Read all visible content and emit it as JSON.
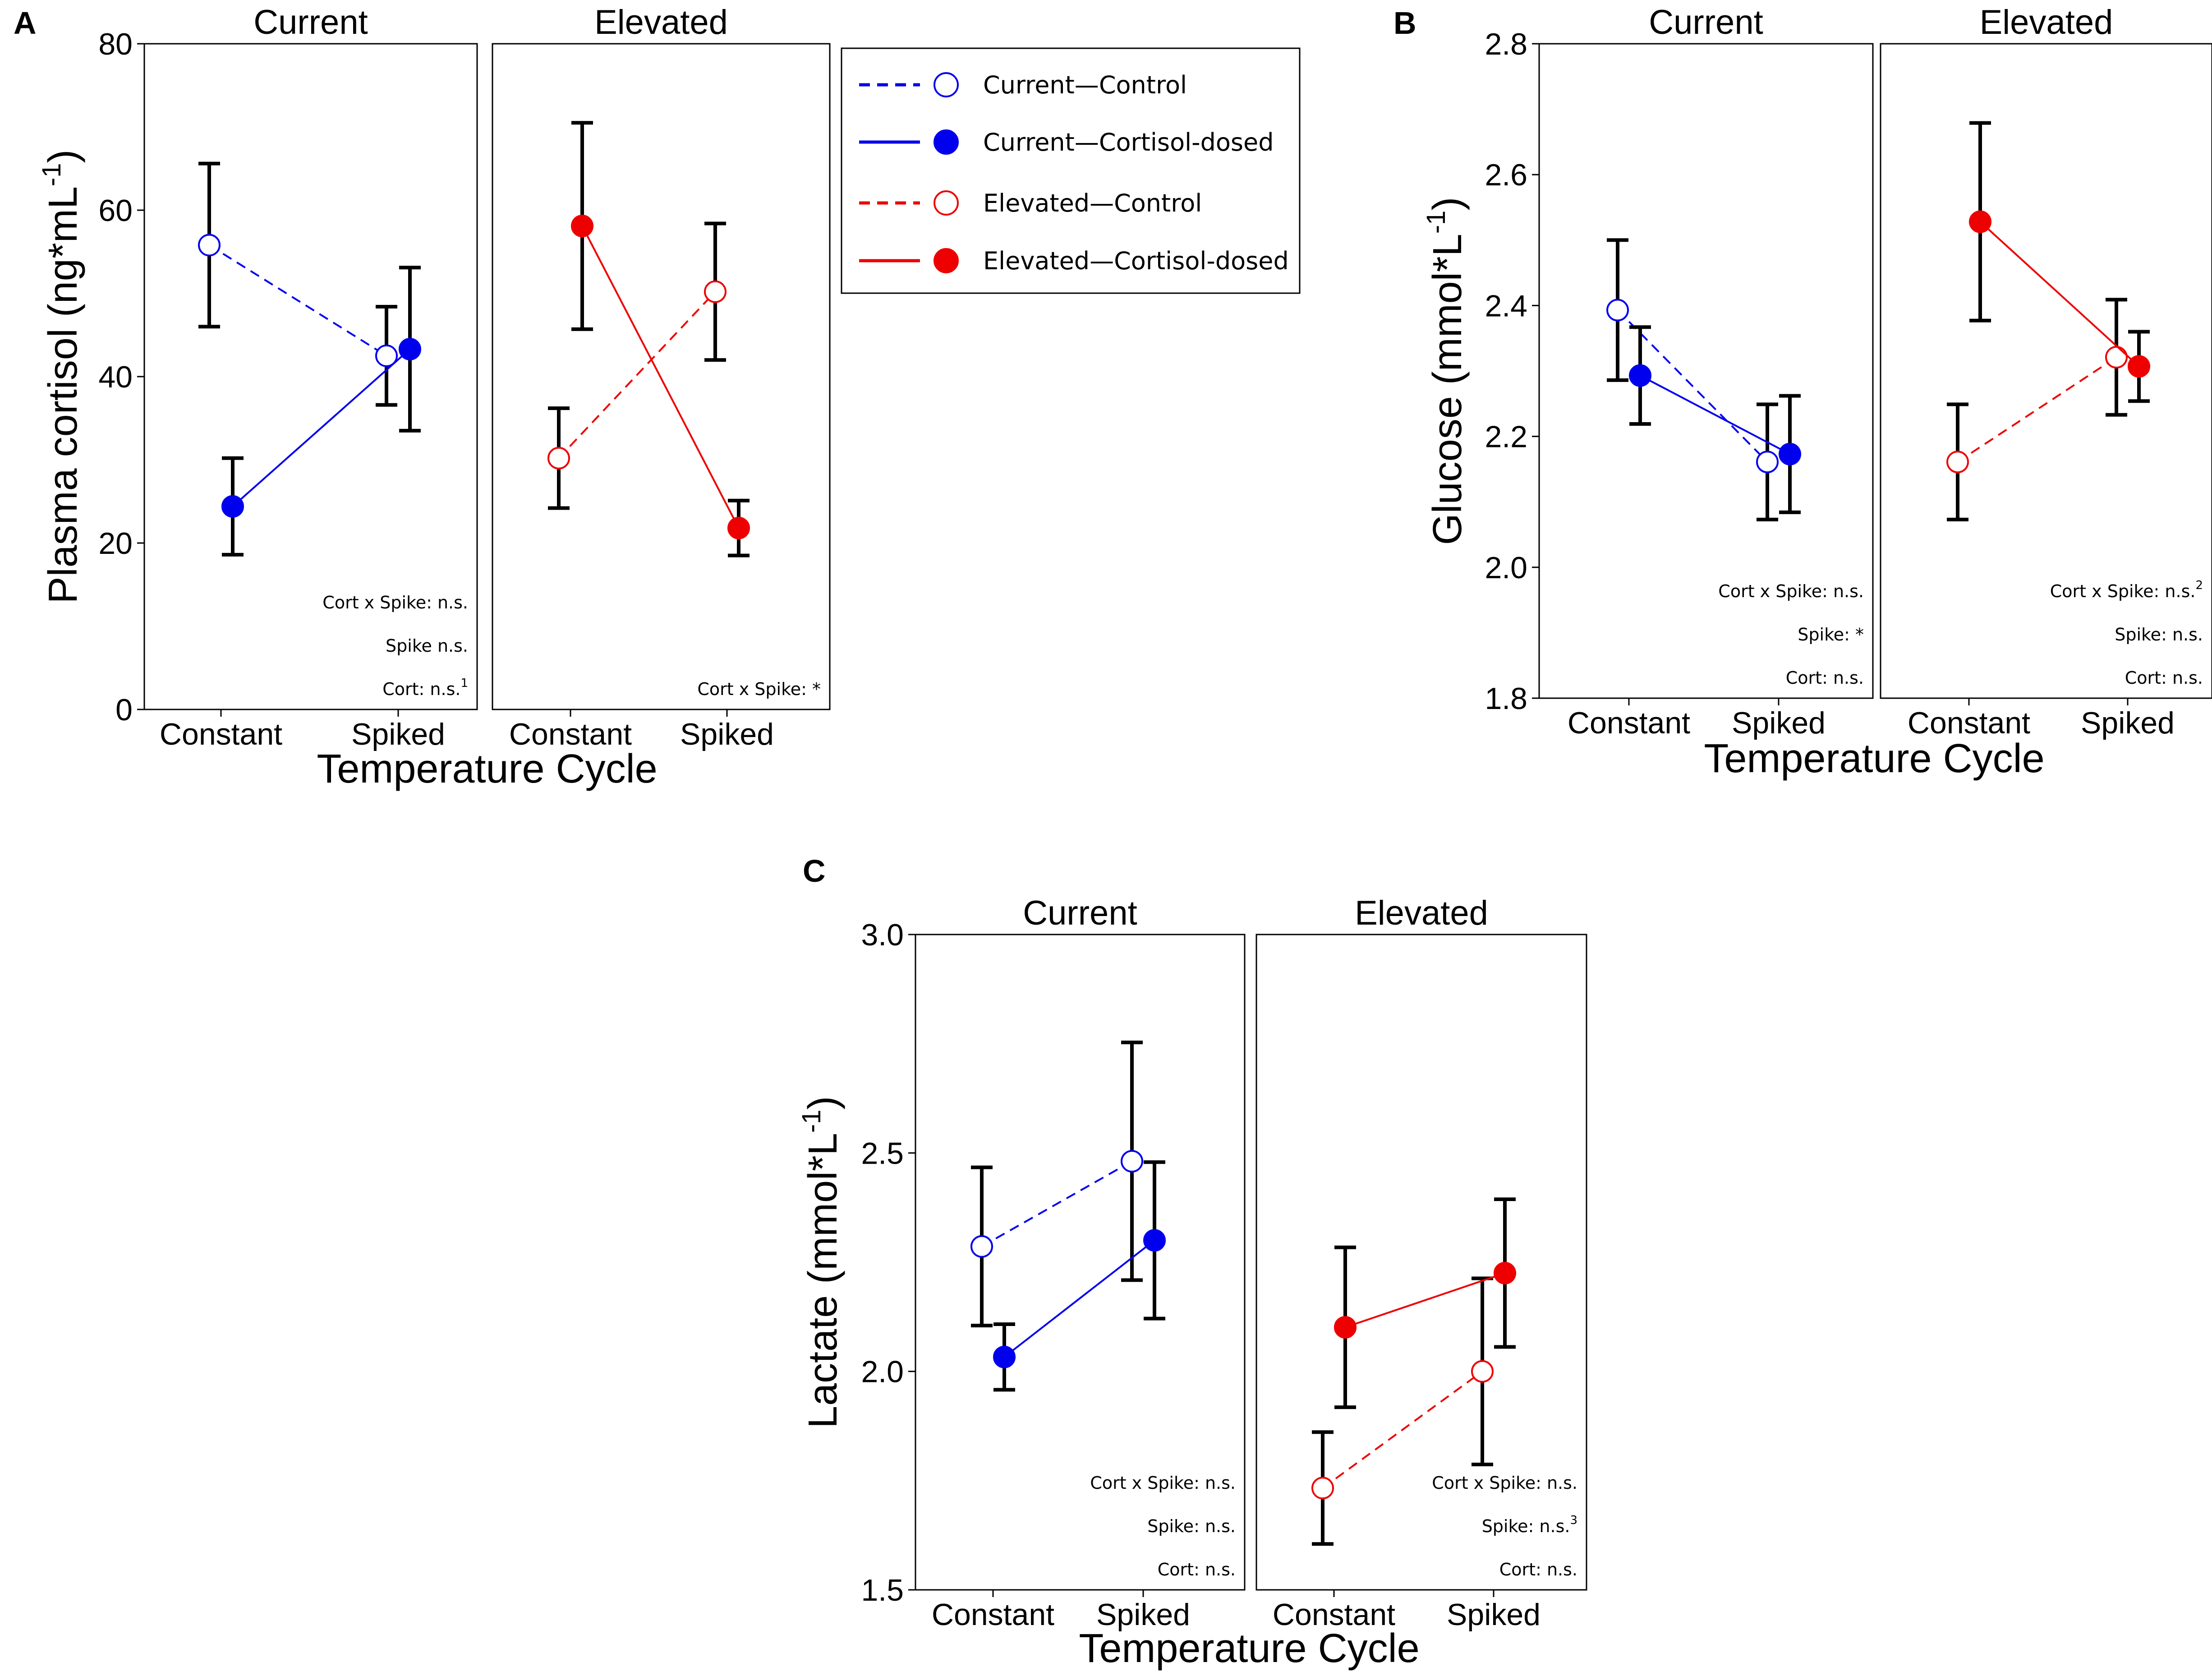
{
  "legend": {
    "entries": [
      {
        "label": "Current—Control",
        "color": "#0000ee",
        "dashed": true,
        "filled": false
      },
      {
        "label": "Current—Cortisol-dosed",
        "color": "#0000ee",
        "dashed": false,
        "filled": true
      },
      {
        "label": "Elevated—Control",
        "color": "#ee0000",
        "dashed": true,
        "filled": false
      },
      {
        "label": "Elevated—Cortisol-dosed",
        "color": "#ee0000",
        "dashed": false,
        "filled": true
      }
    ]
  },
  "chart_data": [
    {
      "panel": "A",
      "type": "line",
      "ylabel_main": "Plasma cortisol (ng*mL",
      "ylabel_sup": "-1",
      "ylabel_end": ")",
      "xlabel": "Temperature Cycle",
      "ylim": [
        0,
        80
      ],
      "yticks": [
        "0",
        "20",
        "40",
        "60",
        "80"
      ],
      "ytick_values": [
        0,
        20,
        40,
        60,
        80
      ],
      "categories": [
        "Constant",
        "Spiked"
      ],
      "facets": [
        {
          "title": "Current",
          "series": [
            {
              "name": "Current—Control",
              "color": "#0000ee",
              "dashed": true,
              "filled": false,
              "values": [
                55.8,
                42.5
              ],
              "err_low": [
                46.0,
                36.6
              ],
              "err_high": [
                65.6,
                48.4
              ]
            },
            {
              "name": "Current—Cortisol-dosed",
              "color": "#0000ee",
              "dashed": false,
              "filled": true,
              "values": [
                24.4,
                43.3
              ],
              "err_low": [
                18.6,
                33.5
              ],
              "err_high": [
                30.2,
                53.1
              ]
            }
          ],
          "annotations": [
            {
              "text": "Cort x Spike: n.s.",
              "sup": ""
            },
            {
              "text": "Spike n.s.",
              "sup": ""
            },
            {
              "text": "Cort: n.s.",
              "sup": "1"
            }
          ]
        },
        {
          "title": "Elevated",
          "series": [
            {
              "name": "Elevated—Control",
              "color": "#ee0000",
              "dashed": true,
              "filled": false,
              "values": [
                30.2,
                50.2
              ],
              "err_low": [
                24.2,
                42.0
              ],
              "err_high": [
                36.2,
                58.4
              ]
            },
            {
              "name": "Elevated—Cortisol-dosed",
              "color": "#ee0000",
              "dashed": false,
              "filled": true,
              "values": [
                58.1,
                21.8
              ],
              "err_low": [
                45.7,
                18.5
              ],
              "err_high": [
                70.5,
                25.1
              ]
            }
          ],
          "annotations": [
            {
              "text": "Cort x Spike: *",
              "sup": ""
            }
          ]
        }
      ]
    },
    {
      "panel": "B",
      "type": "line",
      "ylabel_main": "Glucose (mmol*L",
      "ylabel_sup": "-1",
      "ylabel_end": ")",
      "xlabel": "Temperature Cycle",
      "ylim": [
        1.8,
        2.8
      ],
      "yticks": [
        "1.8",
        "2.0",
        "2.2",
        "2.4",
        "2.6",
        "2.8"
      ],
      "ytick_values": [
        1.8,
        2.0,
        2.2,
        2.4,
        2.6,
        2.8
      ],
      "categories": [
        "Constant",
        "Spiked"
      ],
      "facets": [
        {
          "title": "Current",
          "series": [
            {
              "name": "Current—Control",
              "color": "#0000ee",
              "dashed": true,
              "filled": false,
              "values": [
                2.393,
                2.161
              ],
              "err_low": [
                2.286,
                2.073
              ],
              "err_high": [
                2.5,
                2.249
              ]
            },
            {
              "name": "Current—Cortisol-dosed",
              "color": "#0000ee",
              "dashed": false,
              "filled": true,
              "values": [
                2.293,
                2.173
              ],
              "err_low": [
                2.219,
                2.084
              ],
              "err_high": [
                2.367,
                2.262
              ]
            }
          ],
          "annotations": [
            {
              "text": "Cort x Spike: n.s.",
              "sup": ""
            },
            {
              "text": "Spike: *",
              "sup": ""
            },
            {
              "text": "Cort: n.s.",
              "sup": ""
            }
          ]
        },
        {
          "title": "Elevated",
          "series": [
            {
              "name": "Elevated—Control",
              "color": "#ee0000",
              "dashed": true,
              "filled": false,
              "values": [
                2.161,
                2.321
              ],
              "err_low": [
                2.073,
                2.233
              ],
              "err_high": [
                2.249,
                2.409
              ]
            },
            {
              "name": "Elevated—Cortisol-dosed",
              "color": "#ee0000",
              "dashed": false,
              "filled": true,
              "values": [
                2.528,
                2.307
              ],
              "err_low": [
                2.377,
                2.254
              ],
              "err_high": [
                2.679,
                2.36
              ]
            }
          ],
          "annotations": [
            {
              "text": "Cort x Spike: n.s.",
              "sup": "2"
            },
            {
              "text": "Spike: n.s.",
              "sup": ""
            },
            {
              "text": "Cort: n.s.",
              "sup": ""
            }
          ]
        }
      ]
    },
    {
      "panel": "C",
      "type": "line",
      "ylabel_main": "Lactate (mmol*L",
      "ylabel_sup": "-1",
      "ylabel_end": ")",
      "xlabel": "Temperature Cycle",
      "ylim": [
        1.5,
        3.0
      ],
      "yticks": [
        "1.5",
        "2.0",
        "2.5",
        "3.0"
      ],
      "ytick_values": [
        1.5,
        2.0,
        2.5,
        3.0
      ],
      "categories": [
        "Constant",
        "Spiked"
      ],
      "facets": [
        {
          "title": "Current",
          "series": [
            {
              "name": "Current—Control",
              "color": "#0000ee",
              "dashed": true,
              "filled": false,
              "values": [
                2.286,
                2.481
              ],
              "err_low": [
                2.105,
                2.209
              ],
              "err_high": [
                2.467,
                2.753
              ]
            },
            {
              "name": "Current—Cortisol-dosed",
              "color": "#0000ee",
              "dashed": false,
              "filled": true,
              "values": [
                2.033,
                2.3
              ],
              "err_low": [
                1.958,
                2.121
              ],
              "err_high": [
                2.108,
                2.479
              ]
            }
          ],
          "annotations": [
            {
              "text": "Cort x Spike: n.s.",
              "sup": ""
            },
            {
              "text": "Spike: n.s.",
              "sup": ""
            },
            {
              "text": "Cort: n.s.",
              "sup": ""
            }
          ]
        },
        {
          "title": "Elevated",
          "series": [
            {
              "name": "Elevated—Control",
              "color": "#ee0000",
              "dashed": true,
              "filled": false,
              "values": [
                1.733,
                2.0
              ],
              "err_low": [
                1.605,
                1.787
              ],
              "err_high": [
                1.861,
                2.213
              ]
            },
            {
              "name": "Elevated—Cortisol-dosed",
              "color": "#ee0000",
              "dashed": false,
              "filled": true,
              "values": [
                2.101,
                2.225
              ],
              "err_low": [
                1.918,
                2.056
              ],
              "err_high": [
                2.284,
                2.394
              ]
            }
          ],
          "annotations": [
            {
              "text": "Cort x Spike: n.s.",
              "sup": ""
            },
            {
              "text": "Spike: n.s.",
              "sup": "3"
            },
            {
              "text": "Cort: n.s.",
              "sup": ""
            }
          ]
        }
      ]
    }
  ]
}
